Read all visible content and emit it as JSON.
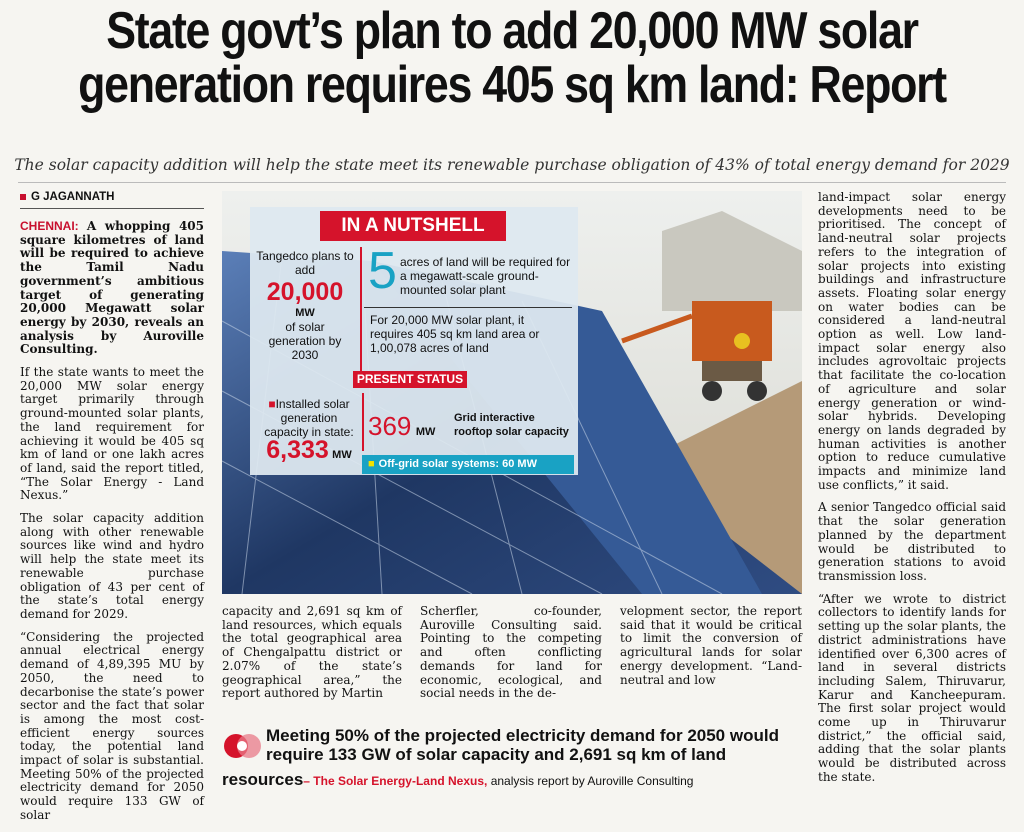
{
  "headline": {
    "line1": "State govt’s plan to add 20,000 MW solar",
    "line2": "generation requires 405 sq km land: Report"
  },
  "subhead": "The solar capacity addition will help the state meet its renewable purchase obligation of 43% of total energy demand for 2029",
  "byline": "G JAGANNATH",
  "col1": {
    "dateline": "CHENNAI:",
    "lead": "A whopping 405 square kilometres of land will be required to achieve the Tamil Nadu government’s ambitious target of generating 20,000 Megawatt solar energy by 2030, reveals an analysis by Auroville Consulting.",
    "p1": "If the state wants to meet the 20,000 MW solar energy target primarily through ground-mounted solar plants, the land requirement for achieving it would be 405 sq km of land or one lakh acres of land, said the report titled, “The Solar Energy - Land Nexus.”",
    "p2": "The solar capacity addition along with other renewable sources like wind and hydro will help the state meet its renewable purchase obligation of 43 per cent of the state’s total energy demand for 2029.",
    "p3": "“Considering the projected annual electrical energy demand of 4,89,395 MU by 2050, the need to decarbonise the state’s power sector and the fact that solar is among the most cost-efficient energy sources today, the potential land impact of solar is substantial. Meeting 50% of the projected electricity demand for 2050 would require 133 GW of solar"
  },
  "col2": "capacity and 2,691 sq km of land resources, which equals the total geographical area of Chengalpattu district or 2.07% of the state’s geographical area,” the report authored by Martin",
  "col3": "Scherfler, co-founder, Auroville Consulting said. Pointing to the competing and often conflicting demands for land for economic, ecological, and social needs in the de-",
  "col4": "velopment sector, the report said that it would be critical to limit the conversion of agricultural lands for solar energy development. “Land-neutral and low",
  "col5": {
    "p1": "land-impact solar energy developments need to be prioritised. The concept of land-neutral solar projects refers to the integration of solar projects into existing buildings and infrastructure assets. Floating solar energy on water bodies can be considered a land-neutral option as well. Low land-impact solar energy also includes agrovoltaic projects that facilitate the co-location of agriculture and solar energy generation or wind-solar hybrids. Developing energy on lands degraded by human activities is another option to reduce cumulative impacts and minimize land use conflicts,” it said.",
    "p2": "A senior Tangedco official said that the solar generation planned by the department would be distributed to generation stations to avoid transmission loss.",
    "p3": "“After we wrote to district collectors to identify lands for setting up the solar plants, the district administrations have identified over 6,300 acres of land in several districts including Salem, Thiruvarur, Karur and Kancheepuram. The first solar project would come up in Thiruvarur district,” the official said, adding that the solar plants would be distributed across the state."
  },
  "nutshell": {
    "title": "IN A NUTSHELL",
    "plan_prefix": "Tangedco plans to add",
    "plan_value": "20,000",
    "plan_unit": "MW",
    "plan_suffix": "of solar generation by 2030",
    "acres_number": "5",
    "acres_text": "acres of land will be required for a megawatt-scale ground-mounted solar plant",
    "plant_text": "For 20,000 MW solar plant, it requires 405 sq km land area or 1,00,078 acres of land",
    "present_status": "PRESENT STATUS",
    "installed_label": "Installed solar generation capacity in state:",
    "installed_value": "6,333",
    "installed_unit": "MW",
    "rooftop_value": "369",
    "rooftop_unit": "MW",
    "rooftop_label": "Grid interactive rooftop solar capacity",
    "offgrid": "Off-grid solar systems: 60 MW"
  },
  "callout": {
    "quote": "Meeting 50% of the projected electricity demand for 2050 would require 133 GW of solar capacity and 2,691 sq km of land",
    "quote_end": "resources",
    "source": "– The Solar Energy-Land Nexus,",
    "source_suffix": "analysis report by Auroville Consulting"
  },
  "colors": {
    "accent_red": "#d5132b",
    "accent_cyan": "#19a2c4",
    "dateline_red": "#c8102e"
  }
}
